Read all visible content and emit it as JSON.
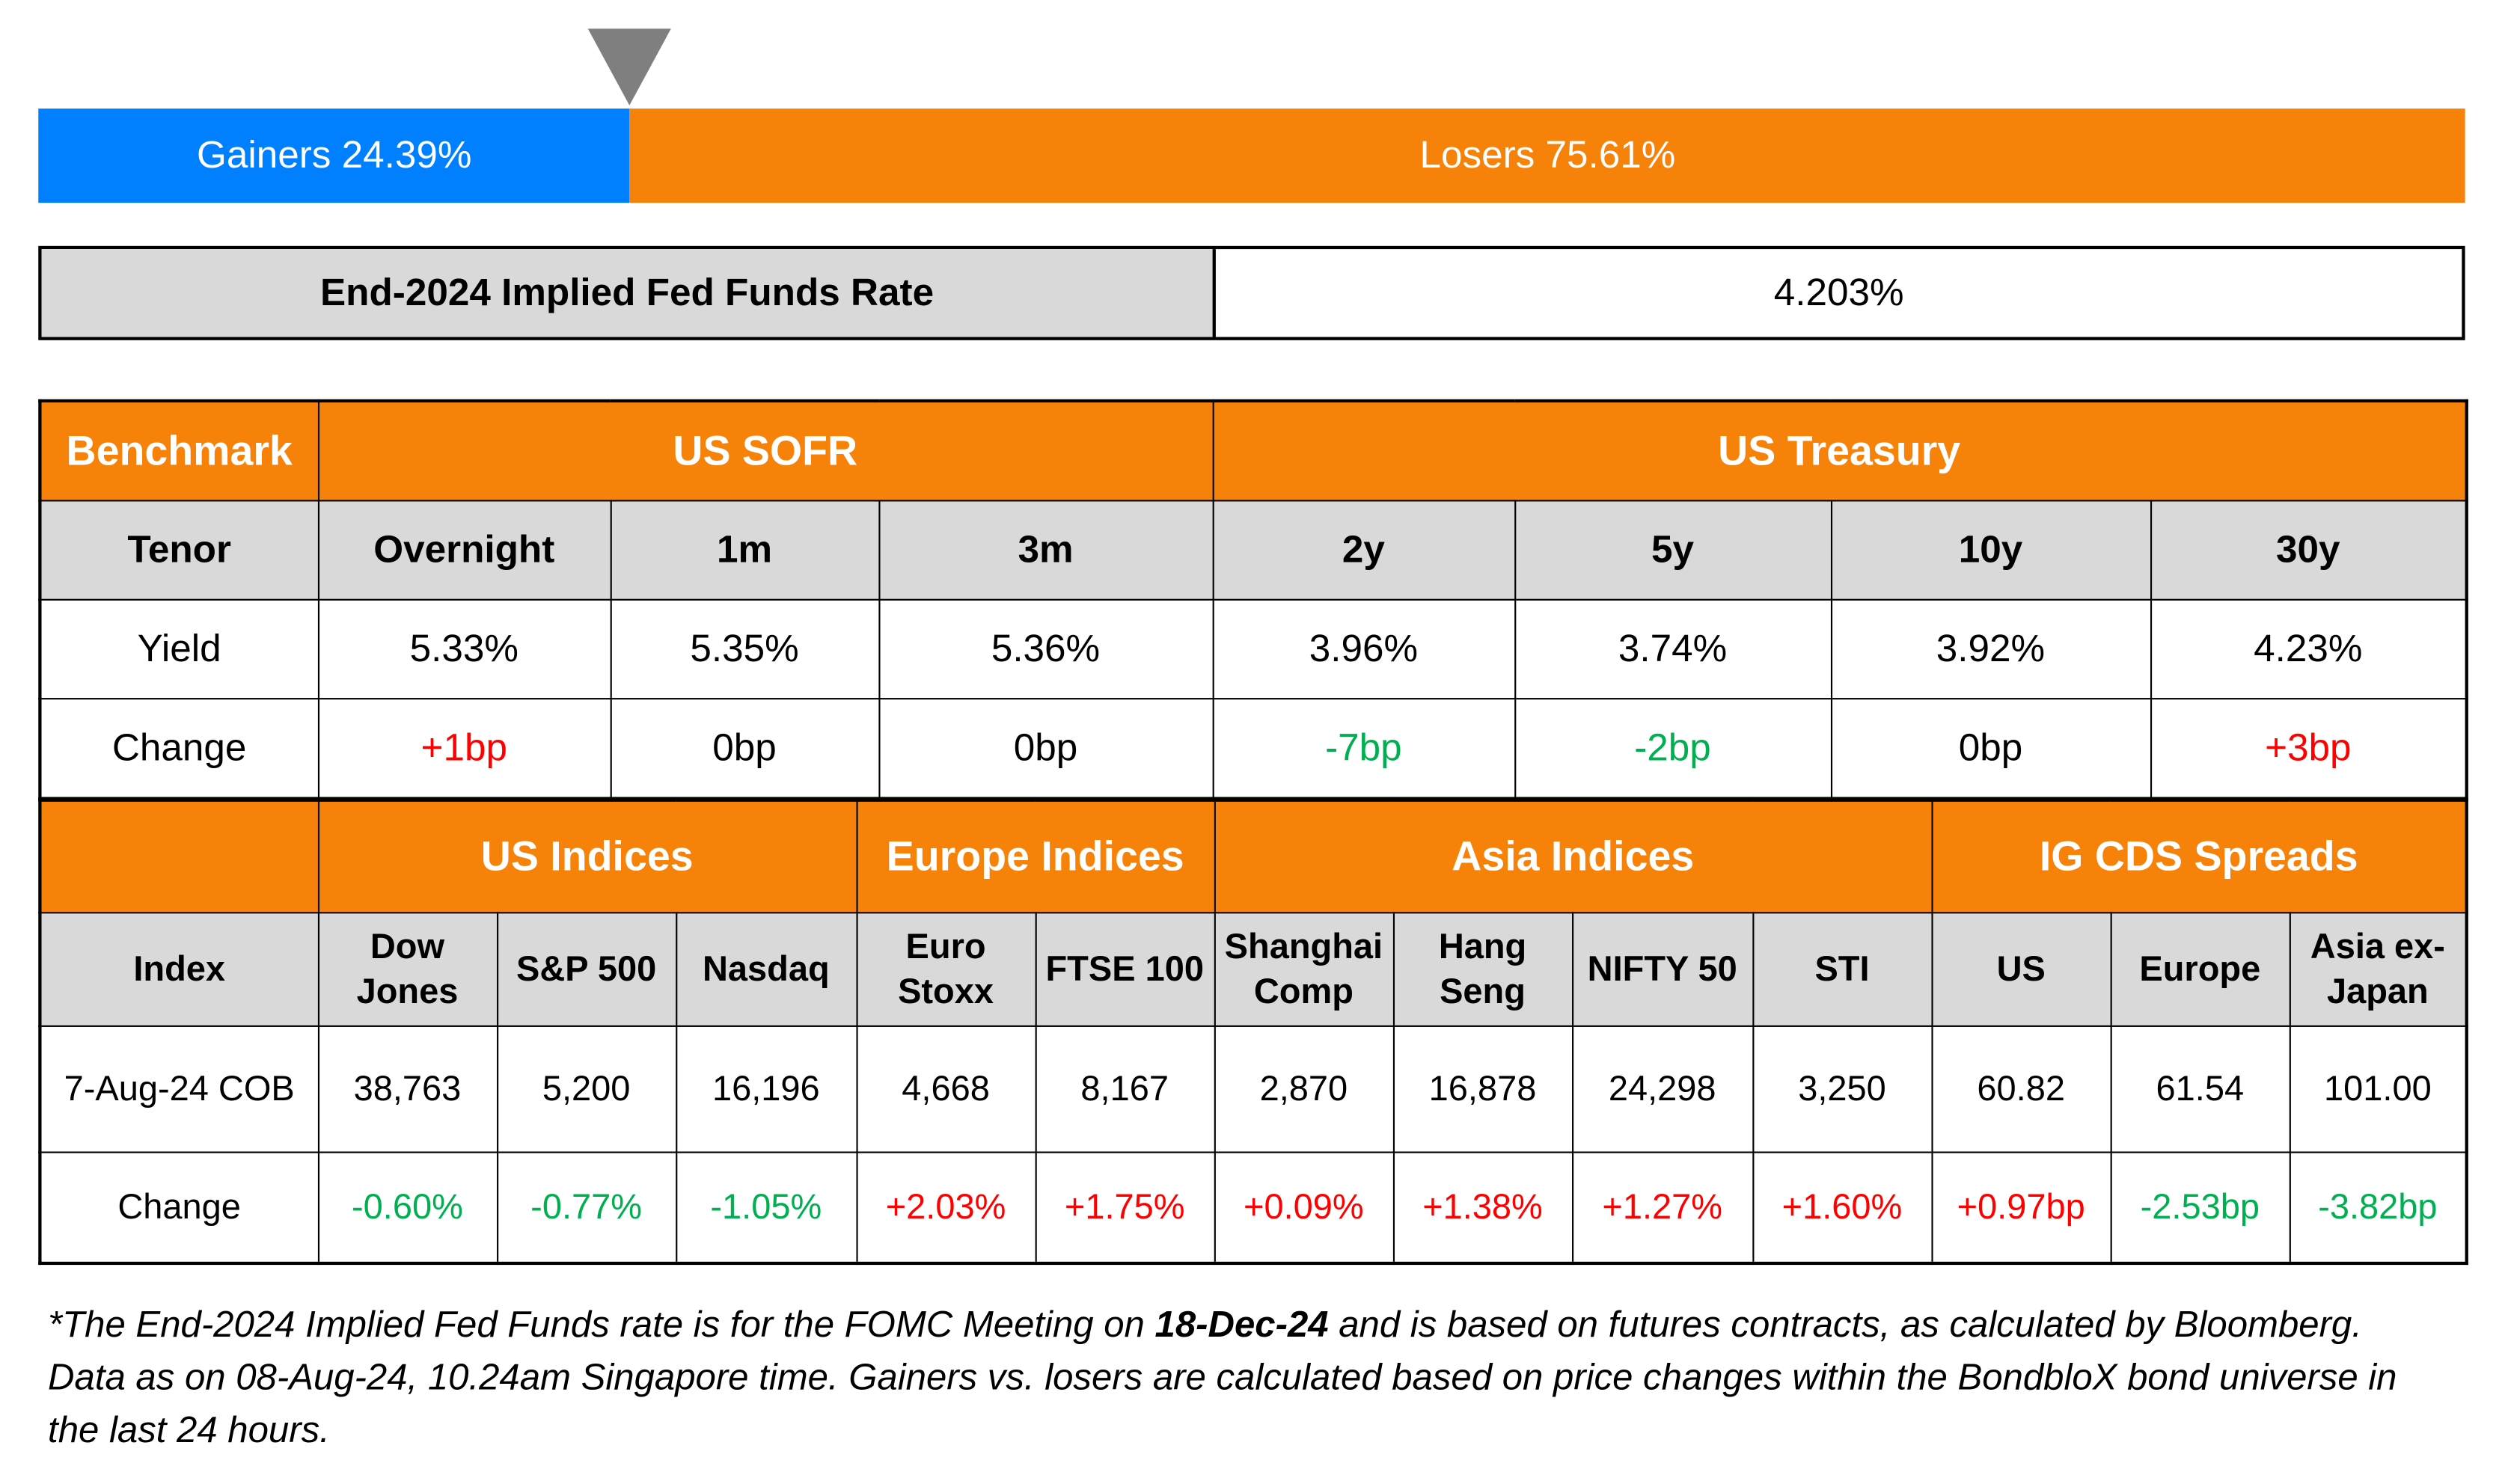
{
  "breadth": {
    "gainers_label": "Gainers 24.39%",
    "losers_label": "Losers 75.61%",
    "gainers_pct": 24.39,
    "losers_pct": 75.61,
    "colors": {
      "gainers": "#0080ff",
      "losers": "#f7820a"
    }
  },
  "fed": {
    "label": "End-2024 Implied Fed Funds Rate",
    "value": "4.203%"
  },
  "rates": {
    "benchmark": "Benchmark",
    "sofr": "US SOFR",
    "treasury": "US Treasury",
    "tenor_label": "Tenor",
    "tenors": [
      "Overnight",
      "1m",
      "3m",
      "2y",
      "5y",
      "10y",
      "30y"
    ],
    "yield_label": "Yield",
    "yields": [
      "5.33%",
      "5.35%",
      "5.36%",
      "3.96%",
      "3.74%",
      "3.92%",
      "4.23%"
    ],
    "change_label": "Change",
    "changes": [
      "+1bp",
      "0bp",
      "0bp",
      "-7bp",
      "-2bp",
      "0bp",
      "+3bp"
    ]
  },
  "indices": {
    "groups": [
      "US Indices",
      "Europe Indices",
      "Asia Indices",
      "IG CDS Spreads"
    ],
    "index_label": "Index",
    "names": [
      [
        "Dow",
        "Jones"
      ],
      [
        "S&P 500",
        ""
      ],
      [
        "Nasdaq",
        ""
      ],
      [
        "Euro",
        "Stoxx"
      ],
      [
        "FTSE 100",
        ""
      ],
      [
        "Shanghai",
        "Comp"
      ],
      [
        "Hang",
        "Seng"
      ],
      [
        "NIFTY 50",
        ""
      ],
      [
        "STI",
        ""
      ],
      [
        "US",
        ""
      ],
      [
        "Europe",
        ""
      ],
      [
        "Asia ex-",
        "Japan"
      ]
    ],
    "date_label": "7-Aug-24 COB",
    "values": [
      "38,763",
      "5,200",
      "16,196",
      "4,668",
      "8,167",
      "2,870",
      "16,878",
      "24,298",
      "3,250",
      "60.82",
      "61.54",
      "101.00"
    ],
    "change_label": "Change",
    "changes": [
      "-0.60%",
      "-0.77%",
      "-1.05%",
      "+2.03%",
      "+1.75%",
      "+0.09%",
      "+1.38%",
      "+1.27%",
      "+1.60%",
      "+0.97bp",
      "-2.53bp",
      "-3.82bp"
    ]
  },
  "note": {
    "part1": "*The End-2024 Implied Fed Funds rate is for the FOMC Meeting on ",
    "bold": "18-Dec-24",
    "part2": " and is based on futures contracts, as calculated by Bloomberg. Data as on 08-Aug-24, 10.24am Singapore time. Gainers vs. losers are calculated based on price changes within the BondbloX bond universe in the last 24 hours."
  }
}
